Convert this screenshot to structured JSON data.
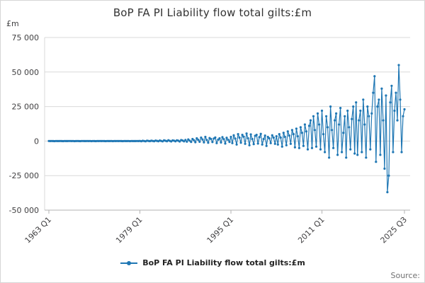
{
  "legend": {
    "label": "BoP FA PI Liability flow total gilts:£m"
  },
  "footer": {
    "source_label": "Source:"
  },
  "chart_data": {
    "type": "line",
    "title": "BoP FA PI Liability flow total gilts:£m",
    "xlabel": "",
    "ylabel": "£m",
    "x_start": "1963 Q1",
    "x_end": "2025 Q3",
    "frequency": "quarterly",
    "ylim": [
      -50000,
      75000
    ],
    "grid": true,
    "legend_position": "bottom",
    "accent_color": "#1f77b4",
    "grid_color": "#d9d9d9",
    "axis_color": "#b3b3b3",
    "tick_text_color": "#414042",
    "yticks": [
      {
        "value": 75000,
        "label": "75 000"
      },
      {
        "value": 50000,
        "label": "50 000"
      },
      {
        "value": 25000,
        "label": "25 000"
      },
      {
        "value": 0,
        "label": "0"
      },
      {
        "value": -25000,
        "label": "-25 000"
      },
      {
        "value": -50000,
        "label": "-50 000"
      }
    ],
    "xticks": [
      {
        "index": 0,
        "label": "1963 Q1"
      },
      {
        "index": 64,
        "label": "1979 Q1"
      },
      {
        "index": 128,
        "label": "1995 Q1"
      },
      {
        "index": 192,
        "label": "2011 Q1"
      },
      {
        "index": 250,
        "label": "2025 Q3"
      }
    ],
    "series": [
      {
        "name": "BoP FA PI Liability flow total gilts:£m",
        "color": "#1f77b4",
        "values": [
          30,
          -20,
          50,
          10,
          -40,
          60,
          20,
          -10,
          40,
          0,
          -30,
          50,
          20,
          -20,
          60,
          30,
          -10,
          40,
          -30,
          20,
          50,
          0,
          -40,
          30,
          60,
          -20,
          10,
          40,
          -10,
          30,
          -30,
          50,
          20,
          -40,
          60,
          0,
          30,
          -20,
          40,
          10,
          -30,
          50,
          -10,
          20,
          60,
          -40,
          30,
          0,
          40,
          -20,
          50,
          10,
          -30,
          60,
          20,
          -10,
          30,
          -40,
          50,
          0,
          20,
          -20,
          40,
          10,
          100,
          -80,
          200,
          50,
          -150,
          300,
          120,
          -60,
          250,
          80,
          -100,
          350,
          150,
          -120,
          400,
          100,
          -200,
          500,
          200,
          -100,
          600,
          150,
          -250,
          450,
          300,
          -150,
          550,
          250,
          -300,
          700,
          400,
          -200,
          800,
          -400,
          1200,
          300,
          -600,
          1500,
          600,
          -800,
          2000,
          900,
          -500,
          2500,
          1200,
          -900,
          3000,
          800,
          -1200,
          2200,
          1500,
          -700,
          1800,
          2600,
          -1500,
          1000,
          2000,
          -1000,
          2800,
          1400,
          -1800,
          2400,
          900,
          -600,
          3000,
          -1500,
          4200,
          1800,
          -2500,
          5000,
          2500,
          -1200,
          4500,
          3200,
          -2000,
          5500,
          2000,
          -3000,
          4800,
          1500,
          -2200,
          3800,
          4500,
          -1800,
          2800,
          5200,
          -2500,
          1500,
          4000,
          -3500,
          3000,
          2000,
          -1500,
          4200,
          2500,
          -2000,
          3500,
          -2500,
          5000,
          2500,
          -4000,
          6000,
          3000,
          -3000,
          7000,
          4000,
          -2000,
          8000,
          5000,
          -4500,
          9000,
          3500,
          -5000,
          10000,
          6000,
          -3500,
          12000,
          7000,
          -6000,
          11000,
          15000,
          -5000,
          18000,
          8000,
          -4000,
          20000,
          12000,
          -6000,
          22000,
          5000,
          -8000,
          18000,
          10000,
          -12000,
          25000,
          8000,
          -5000,
          15000,
          20000,
          -10000,
          12000,
          24000,
          -8000,
          6000,
          18000,
          -12000,
          22000,
          10000,
          -6000,
          16000,
          25000,
          -9000,
          28000,
          -10000,
          15000,
          22000,
          -8000,
          30000,
          12000,
          -12000,
          25000,
          18000,
          -6000,
          20000,
          35000,
          47000,
          -15000,
          25000,
          30000,
          -10000,
          38000,
          15000,
          -20000,
          33000,
          -37000,
          -25000,
          28000,
          40000,
          -8000,
          22000,
          35000,
          15000,
          55000,
          30000,
          -8000,
          18000,
          23000
        ]
      }
    ]
  }
}
